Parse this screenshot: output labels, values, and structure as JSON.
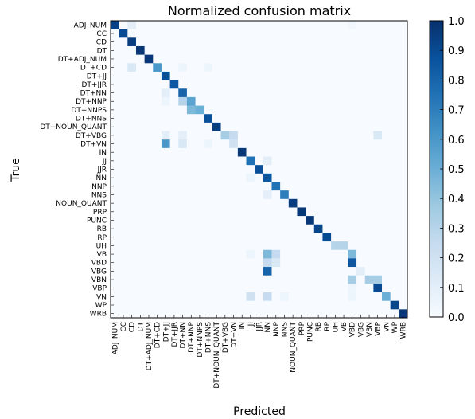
{
  "chart_data": {
    "type": "heatmap",
    "title": "Normalized confusion matrix",
    "xlabel": "Predicted",
    "ylabel": "True",
    "labels": [
      "ADJ_NUM",
      "CC",
      "CD",
      "DT",
      "DT+ADJ_NUM",
      "DT+CD",
      "DT+JJ",
      "DT+JJR",
      "DT+NN",
      "DT+NNP",
      "DT+NNPS",
      "DT+NNS",
      "DT+NOUN_QUANT",
      "DT+VBG",
      "DT+VN",
      "IN",
      "JJ",
      "JJR",
      "NN",
      "NNP",
      "NNS",
      "NOUN_QUANT",
      "PRP",
      "PUNC",
      "RB",
      "RP",
      "UH",
      "VB",
      "VBD",
      "VBG",
      "VBN",
      "VBP",
      "VN",
      "WP",
      "WRB"
    ],
    "colorbar": {
      "range": [
        0.0,
        1.0
      ],
      "ticks": [
        "0.0",
        "0.1",
        "0.2",
        "0.3",
        "0.4",
        "0.5",
        "0.6",
        "0.7",
        "0.8",
        "0.9",
        "1.0"
      ]
    },
    "diagonal": [
      0.93,
      0.9,
      0.95,
      0.97,
      0.97,
      0.6,
      0.88,
      0.85,
      0.8,
      0.55,
      0.5,
      0.88,
      0.95,
      0.35,
      0.2,
      0.97,
      0.75,
      0.88,
      0.85,
      0.75,
      0.7,
      0.95,
      0.97,
      0.97,
      0.92,
      0.9,
      0.3,
      0.0,
      0.85,
      0.1,
      0.35,
      0.9,
      0.5,
      0.92,
      0.97
    ],
    "off_diagonal": [
      {
        "row": 0,
        "col": 2,
        "value": 0.1
      },
      {
        "row": 5,
        "col": 2,
        "value": 0.15
      },
      {
        "row": 5,
        "col": 8,
        "value": 0.05
      },
      {
        "row": 5,
        "col": 11,
        "value": 0.05
      },
      {
        "row": 8,
        "col": 6,
        "value": 0.1
      },
      {
        "row": 9,
        "col": 8,
        "value": 0.3
      },
      {
        "row": 9,
        "col": 6,
        "value": 0.05
      },
      {
        "row": 10,
        "col": 9,
        "value": 0.45
      },
      {
        "row": 13,
        "col": 6,
        "value": 0.1
      },
      {
        "row": 13,
        "col": 8,
        "value": 0.1
      },
      {
        "row": 13,
        "col": 14,
        "value": 0.25
      },
      {
        "row": 13,
        "col": 31,
        "value": 0.15
      },
      {
        "row": 14,
        "col": 6,
        "value": 0.6
      },
      {
        "row": 14,
        "col": 8,
        "value": 0.15
      },
      {
        "row": 14,
        "col": 11,
        "value": 0.05
      },
      {
        "row": 16,
        "col": 18,
        "value": 0.1
      },
      {
        "row": 18,
        "col": 16,
        "value": 0.05
      },
      {
        "row": 20,
        "col": 18,
        "value": 0.1
      },
      {
        "row": 26,
        "col": 27,
        "value": 0.3
      },
      {
        "row": 27,
        "col": 18,
        "value": 0.45
      },
      {
        "row": 27,
        "col": 19,
        "value": 0.25
      },
      {
        "row": 27,
        "col": 28,
        "value": 0.45
      },
      {
        "row": 27,
        "col": 16,
        "value": 0.05
      },
      {
        "row": 28,
        "col": 18,
        "value": 0.25
      },
      {
        "row": 28,
        "col": 19,
        "value": 0.15
      },
      {
        "row": 29,
        "col": 18,
        "value": 0.8
      },
      {
        "row": 30,
        "col": 28,
        "value": 0.35
      },
      {
        "row": 30,
        "col": 31,
        "value": 0.35
      },
      {
        "row": 32,
        "col": 16,
        "value": 0.2
      },
      {
        "row": 32,
        "col": 18,
        "value": 0.25
      },
      {
        "row": 32,
        "col": 20,
        "value": 0.05
      },
      {
        "row": 32,
        "col": 28,
        "value": 0.05
      },
      {
        "row": 0,
        "col": 28,
        "value": 0.03
      },
      {
        "row": 31,
        "col": 28,
        "value": 0.05
      }
    ]
  }
}
